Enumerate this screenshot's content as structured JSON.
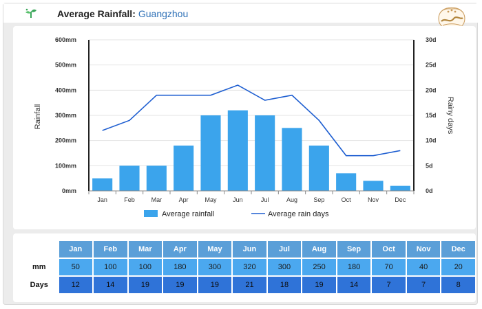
{
  "header": {
    "title": "Average Rainfall:",
    "city": "Guangzhou"
  },
  "colors": {
    "bar": "#3ba4ec",
    "line": "#1f5fd1",
    "month_header": "#5b9fd8",
    "mm_row": "#4ba8ef",
    "days_row": "#2f73d8"
  },
  "chart_data": {
    "type": "bar",
    "categories": [
      "Jan",
      "Feb",
      "Mar",
      "Apr",
      "May",
      "Jun",
      "Jul",
      "Aug",
      "Sep",
      "Oct",
      "Nov",
      "Dec"
    ],
    "series": [
      {
        "name": "Average rainfall",
        "type": "bar",
        "axis": "left",
        "values": [
          50,
          100,
          100,
          180,
          300,
          320,
          300,
          250,
          180,
          70,
          40,
          20
        ]
      },
      {
        "name": "Average rain days",
        "type": "line",
        "axis": "right",
        "values": [
          12,
          14,
          19,
          19,
          19,
          21,
          18,
          19,
          14,
          7,
          7,
          8
        ]
      }
    ],
    "ylabel": "Rainfall",
    "y2label": "Rainy days",
    "ylim": [
      0,
      600
    ],
    "y2lim": [
      0,
      30
    ],
    "yticks": [
      "0mm",
      "100mm",
      "200mm",
      "300mm",
      "400mm",
      "500mm",
      "600mm"
    ],
    "y2ticks": [
      "0d",
      "5d",
      "10d",
      "15d",
      "20d",
      "25d",
      "30d"
    ],
    "grid": true,
    "legend_position": "bottom"
  },
  "table": {
    "row_labels": {
      "mm": "mm",
      "days": "Days"
    },
    "months": [
      "Jan",
      "Feb",
      "Mar",
      "Apr",
      "May",
      "Jun",
      "Jul",
      "Aug",
      "Sep",
      "Oct",
      "Nov",
      "Dec"
    ],
    "mm": [
      "50",
      "100",
      "100",
      "180",
      "300",
      "320",
      "300",
      "250",
      "180",
      "70",
      "40",
      "20"
    ],
    "days": [
      "12",
      "14",
      "19",
      "19",
      "19",
      "21",
      "18",
      "19",
      "14",
      "7",
      "7",
      "8"
    ]
  }
}
